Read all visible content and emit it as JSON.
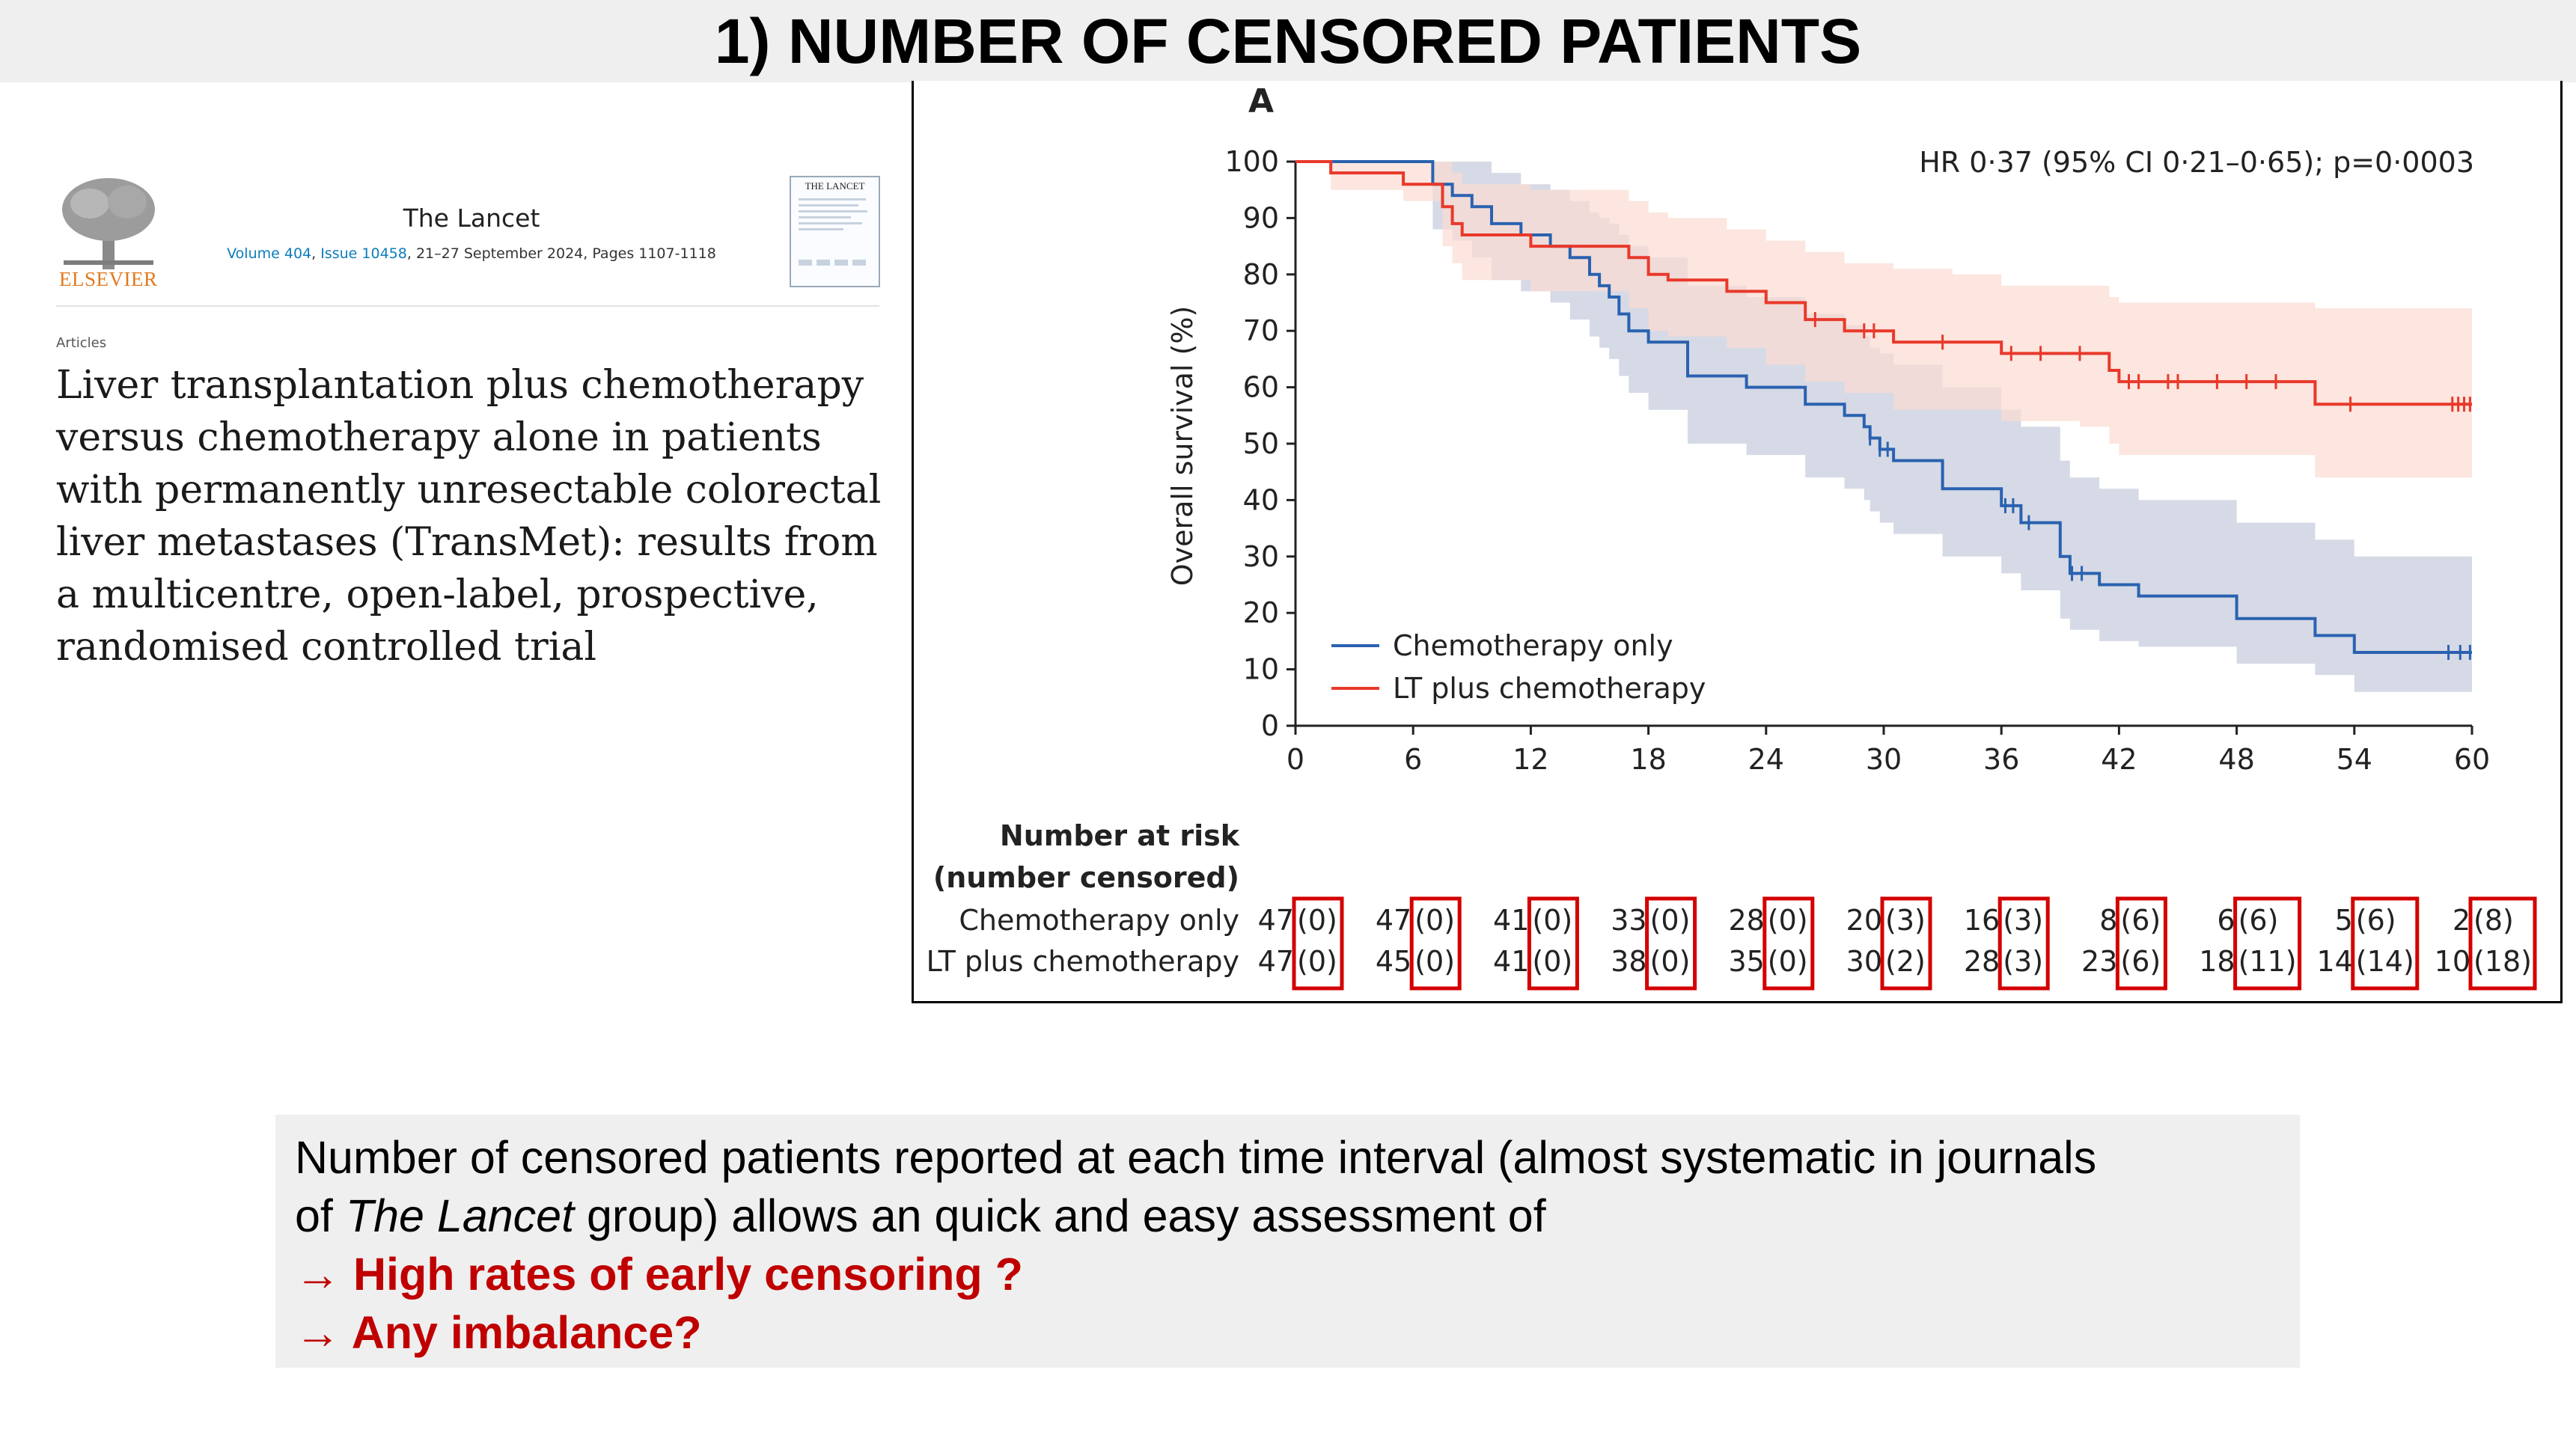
{
  "slide": {
    "title": "1) NUMBER OF CENSORED PATIENTS"
  },
  "article": {
    "publisher": "ELSEVIER",
    "journal": "The Lancet",
    "volume": "Volume 404",
    "issue": "Issue 10458",
    "issue_details": ", 21–27 September 2024, Pages 1107-1118",
    "cover_title": "THE LANCET",
    "article_type": "Articles",
    "title": "Liver transplantation plus chemotherapy versus chemotherapy alone in patients with permanently unresectable colorectal liver metastases (TransMet): results from a multicentre, open-label, prospective, randomised controlled trial"
  },
  "chart_data": {
    "type": "line",
    "panel_label": "A",
    "annotation": "HR 0·37 (95% CI 0·21–0·65); p=0·0003",
    "xlabel": "",
    "ylabel": "Overall survival (%)",
    "xlim": [
      0,
      60
    ],
    "ylim": [
      0,
      100
    ],
    "xticks": [
      0,
      6,
      12,
      18,
      24,
      30,
      36,
      42,
      48,
      54,
      60
    ],
    "yticks": [
      0,
      10,
      20,
      30,
      40,
      50,
      60,
      70,
      80,
      90,
      100
    ],
    "legend": [
      "Chemotherapy only",
      "LT plus chemotherapy"
    ],
    "series": [
      {
        "name": "Chemotherapy only",
        "color": "#2a62b0",
        "band_color": "#c5cbdc",
        "x": [
          0,
          6.5,
          7,
          8,
          9,
          10,
          11.5,
          13,
          14,
          15,
          15.5,
          16,
          16.5,
          17,
          18,
          20,
          23,
          26,
          28,
          29,
          29.3,
          29.8,
          30.5,
          33,
          36,
          37,
          39,
          39.5,
          41,
          43,
          48,
          52,
          54,
          60
        ],
        "y": [
          100,
          100,
          96,
          94,
          92,
          89,
          87,
          85,
          83,
          80,
          78,
          76,
          73,
          70,
          68,
          62,
          60,
          57,
          55,
          53,
          51,
          49,
          47,
          42,
          39,
          36,
          30,
          27,
          25,
          23,
          19,
          16,
          13,
          13
        ],
        "upper": [
          100,
          100,
          100,
          100,
          100,
          98,
          96,
          95,
          93,
          91,
          90,
          89,
          87,
          85,
          83,
          78,
          76,
          73,
          71,
          69,
          67,
          66,
          64,
          60,
          56,
          53,
          47,
          44,
          42,
          40,
          36,
          33,
          30,
          30
        ],
        "lower": [
          100,
          100,
          88,
          86,
          83,
          79,
          77,
          75,
          72,
          69,
          67,
          65,
          62,
          59,
          56,
          50,
          48,
          44,
          42,
          40,
          38,
          36,
          34,
          30,
          27,
          24,
          19,
          17,
          15,
          14,
          11,
          9,
          6,
          6
        ],
        "censored_x": [
          29.3,
          29.8,
          30.2,
          36.2,
          36.6,
          37.4,
          39.6,
          40.1,
          58.8,
          59.4,
          59.9
        ]
      },
      {
        "name": "LT plus chemotherapy",
        "color": "#e8392b",
        "band_color": "#fbdcd2",
        "x": [
          0,
          1.8,
          5.5,
          7.5,
          8,
          8.5,
          12,
          13,
          17,
          18,
          19,
          22,
          24,
          26,
          28,
          30.5,
          33.5,
          36,
          40,
          41.5,
          42,
          52,
          60
        ],
        "y": [
          100,
          98,
          96,
          92,
          89,
          87,
          85,
          85,
          83,
          80,
          79,
          77,
          75,
          72,
          70,
          68,
          68,
          66,
          66,
          63,
          61,
          57,
          57
        ],
        "upper": [
          100,
          100,
          100,
          100,
          98,
          96,
          95,
          95,
          93,
          91,
          90,
          88,
          86,
          84,
          82,
          81,
          80,
          78,
          78,
          76,
          75,
          74,
          74
        ],
        "lower": [
          100,
          95,
          93,
          85,
          82,
          79,
          77,
          77,
          74,
          70,
          69,
          67,
          64,
          61,
          59,
          56,
          56,
          54,
          53,
          50,
          48,
          44,
          44
        ],
        "censored_x": [
          26.5,
          29,
          29.5,
          33,
          36.5,
          38,
          40,
          42.5,
          43,
          44.5,
          45,
          47,
          48.5,
          50,
          53.8,
          59,
          59.3,
          59.6,
          59.9
        ]
      }
    ],
    "risk_table": {
      "header": "Number at risk",
      "subheader": "(number censored)",
      "times": [
        0,
        6,
        12,
        18,
        24,
        30,
        36,
        42,
        48,
        54,
        60
      ],
      "rows": [
        {
          "label": "Chemotherapy only",
          "at_risk": [
            "47",
            "47",
            "41",
            "33",
            "28",
            "20",
            "16",
            "8",
            "6",
            "5",
            "2"
          ],
          "censored": [
            "(0)",
            "(0)",
            "(0)",
            "(0)",
            "(0)",
            "(3)",
            "(3)",
            "(6)",
            "(6)",
            "(6)",
            "(8)"
          ]
        },
        {
          "label": "LT plus chemotherapy",
          "at_risk": [
            "47",
            "45",
            "41",
            "38",
            "35",
            "30",
            "28",
            "23",
            "18",
            "14",
            "10"
          ],
          "censored": [
            "(0)",
            "(0)",
            "(0)",
            "(0)",
            "(0)",
            "(2)",
            "(3)",
            "(6)",
            "(11)",
            "(14)",
            "(18)"
          ]
        }
      ],
      "highlight_color": "#d40000"
    }
  },
  "note": {
    "line1": "Number of censored patients reported at each time interval (almost systematic in journals",
    "line2_prefix": "of ",
    "line2_journal": "The Lancet",
    "line2_suffix": " group) allows an quick and easy assessment of",
    "arrow": "→",
    "point1": "High rates of early censoring ?",
    "point2": "Any imbalance?"
  }
}
